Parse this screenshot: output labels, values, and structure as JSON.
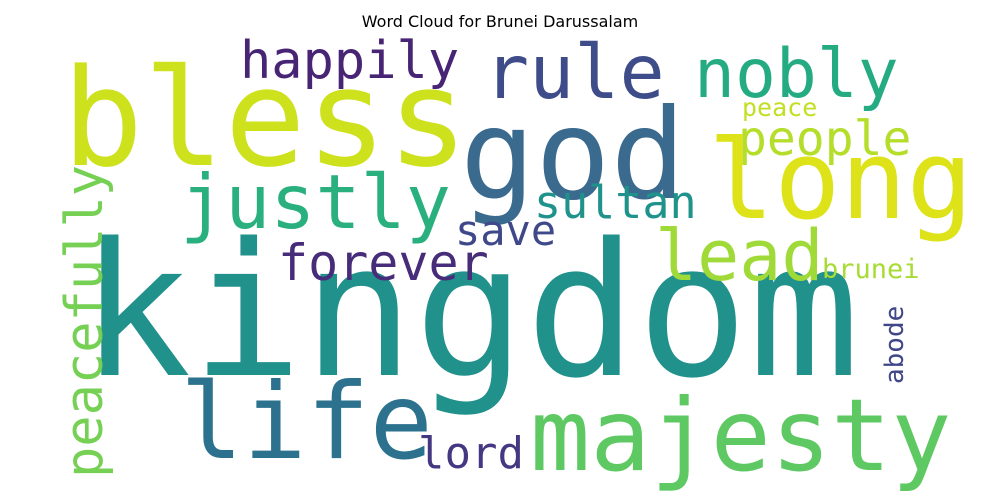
{
  "chart_data": {
    "type": "word_cloud",
    "title": "Word Cloud for Brunei Darussalam",
    "words": [
      {
        "text": "kingdom",
        "color": "#21918c"
      },
      {
        "text": "god",
        "color": "#3b6a8f"
      },
      {
        "text": "bless",
        "color": "#cde11d"
      },
      {
        "text": "majesty",
        "color": "#5ec962"
      },
      {
        "text": "long",
        "color": "#dde318"
      },
      {
        "text": "life",
        "color": "#2c728e"
      },
      {
        "text": "rule",
        "color": "#3e4c8a"
      },
      {
        "text": "nobly",
        "color": "#25ab82"
      },
      {
        "text": "justly",
        "color": "#2ab07f"
      },
      {
        "text": "happily",
        "color": "#482475"
      },
      {
        "text": "people",
        "color": "#b5de2b"
      },
      {
        "text": "sultan",
        "color": "#20928c"
      },
      {
        "text": "lead",
        "color": "#a0da39"
      },
      {
        "text": "forever",
        "color": "#472c7a"
      },
      {
        "text": "save",
        "color": "#3f4889"
      },
      {
        "text": "peacefully",
        "color": "#75d054"
      },
      {
        "text": "lord",
        "color": "#453781"
      },
      {
        "text": "peace",
        "color": "#c2df23"
      },
      {
        "text": "brunei",
        "color": "#a8db34"
      },
      {
        "text": "abode",
        "color": "#404688"
      }
    ]
  }
}
